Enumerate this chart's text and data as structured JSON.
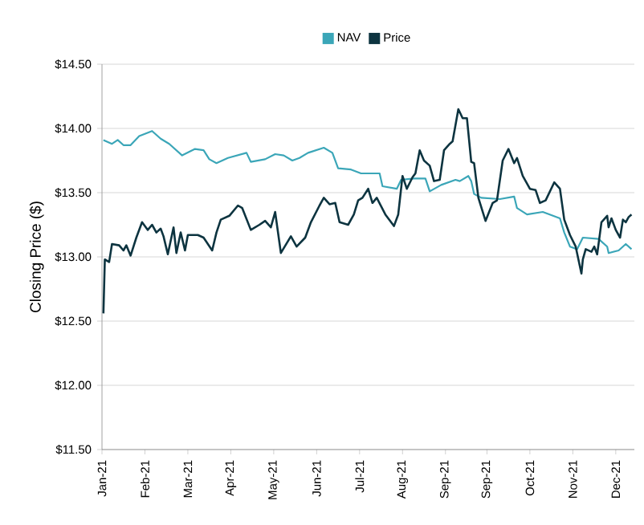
{
  "chart_data": {
    "type": "line",
    "ylabel": "Closing Price ($)",
    "legend": "top",
    "grid": "y",
    "marker": "none",
    "line_style": "solid",
    "xlim": [
      "2021-01-04",
      "2022-01-11"
    ],
    "xticks": [
      {
        "value": "2021-01-04",
        "label": "Jan-21"
      },
      {
        "value": "2021-02-03",
        "label": "Feb-21"
      },
      {
        "value": "2021-03-05",
        "label": "Mar-21"
      },
      {
        "value": "2021-04-04",
        "label": "Apr-21"
      },
      {
        "value": "2021-05-04",
        "label": "May-21"
      },
      {
        "value": "2021-06-03",
        "label": "Jun-21"
      },
      {
        "value": "2021-07-03",
        "label": "Jul-21"
      },
      {
        "value": "2021-08-02",
        "label": "Aug-21"
      },
      {
        "value": "2021-09-01",
        "label": "Sep-21"
      },
      {
        "value": "2021-09-30",
        "label": "Sep-21"
      },
      {
        "value": "2021-10-30",
        "label": "Oct-21"
      },
      {
        "value": "2021-11-29",
        "label": "Nov-21"
      },
      {
        "value": "2021-12-29",
        "label": "Dec-21"
      }
    ],
    "ylim": [
      11.5,
      14.5
    ],
    "yticks": [
      {
        "value": 11.5,
        "label": "$11.50"
      },
      {
        "value": 12,
        "label": "$12.00"
      },
      {
        "value": 12.5,
        "label": "$12.50"
      },
      {
        "value": 13,
        "label": "$13.00"
      },
      {
        "value": 13.5,
        "label": "$13.50"
      },
      {
        "value": 14,
        "label": "$14.00"
      },
      {
        "value": 14.5,
        "label": "$14.50"
      }
    ],
    "series": [
      {
        "name": "NAV",
        "color": "#3ba6b8",
        "x": [
          "2021-01-05",
          "2021-01-11",
          "2021-01-15",
          "2021-01-19",
          "2021-01-24",
          "2021-01-30",
          "2021-02-08",
          "2021-02-14",
          "2021-02-20",
          "2021-03-01",
          "2021-03-10",
          "2021-03-16",
          "2021-03-20",
          "2021-03-25",
          "2021-04-02",
          "2021-04-15",
          "2021-04-18",
          "2021-04-28",
          "2021-05-05",
          "2021-05-11",
          "2021-05-17",
          "2021-05-22",
          "2021-05-28",
          "2021-06-08",
          "2021-06-14",
          "2021-06-18",
          "2021-06-27",
          "2021-07-04",
          "2021-07-17",
          "2021-07-19",
          "2021-07-29",
          "2021-08-01",
          "2021-08-10",
          "2021-08-18",
          "2021-08-21",
          "2021-08-29",
          "2021-09-08",
          "2021-09-11",
          "2021-09-17",
          "2021-09-19",
          "2021-09-21",
          "2021-09-26",
          "2021-10-09",
          "2021-10-19",
          "2021-10-21",
          "2021-10-28",
          "2021-11-08",
          "2021-11-20",
          "2021-11-23",
          "2021-11-27",
          "2021-12-02",
          "2021-12-06",
          "2021-12-17",
          "2021-12-23",
          "2021-12-24",
          "2021-12-31",
          "2022-01-05",
          "2022-01-09"
        ],
        "values": [
          13.91,
          13.88,
          13.91,
          13.87,
          13.87,
          13.94,
          13.98,
          13.92,
          13.88,
          13.79,
          13.84,
          13.83,
          13.76,
          13.73,
          13.77,
          13.81,
          13.74,
          13.76,
          13.8,
          13.79,
          13.75,
          13.77,
          13.81,
          13.85,
          13.81,
          13.69,
          13.68,
          13.65,
          13.65,
          13.55,
          13.53,
          13.6,
          13.61,
          13.61,
          13.51,
          13.56,
          13.6,
          13.59,
          13.63,
          13.59,
          13.49,
          13.46,
          13.45,
          13.47,
          13.38,
          13.33,
          13.35,
          13.3,
          13.19,
          13.08,
          13.06,
          13.15,
          13.14,
          13.08,
          13.03,
          13.05,
          13.1,
          13.06
        ]
      },
      {
        "name": "Price",
        "color": "#0d3440",
        "x": [
          "2021-01-05",
          "2021-01-06",
          "2021-01-09",
          "2021-01-11",
          "2021-01-16",
          "2021-01-19",
          "2021-01-21",
          "2021-01-24",
          "2021-01-28",
          "2021-02-01",
          "2021-02-05",
          "2021-02-08",
          "2021-02-11",
          "2021-02-14",
          "2021-02-16",
          "2021-02-19",
          "2021-02-23",
          "2021-02-25",
          "2021-02-28",
          "2021-03-03",
          "2021-03-05",
          "2021-03-12",
          "2021-03-16",
          "2021-03-22",
          "2021-03-25",
          "2021-03-28",
          "2021-04-03",
          "2021-04-09",
          "2021-04-12",
          "2021-04-18",
          "2021-04-24",
          "2021-04-28",
          "2021-05-02",
          "2021-05-05",
          "2021-05-09",
          "2021-05-16",
          "2021-05-20",
          "2021-05-26",
          "2021-05-30",
          "2021-06-05",
          "2021-06-08",
          "2021-06-12",
          "2021-06-16",
          "2021-06-19",
          "2021-06-25",
          "2021-06-29",
          "2021-07-02",
          "2021-07-05",
          "2021-07-09",
          "2021-07-12",
          "2021-07-15",
          "2021-07-21",
          "2021-07-27",
          "2021-07-30",
          "2021-08-02",
          "2021-08-05",
          "2021-08-09",
          "2021-08-11",
          "2021-08-14",
          "2021-08-17",
          "2021-08-21",
          "2021-08-24",
          "2021-08-28",
          "2021-08-31",
          "2021-09-04",
          "2021-09-06",
          "2021-09-10",
          "2021-09-13",
          "2021-09-16",
          "2021-09-19",
          "2021-09-21",
          "2021-09-24",
          "2021-09-29",
          "2021-10-04",
          "2021-10-07",
          "2021-10-11",
          "2021-10-15",
          "2021-10-19",
          "2021-10-21",
          "2021-10-25",
          "2021-10-30",
          "2021-11-03",
          "2021-11-06",
          "2021-11-10",
          "2021-11-16",
          "2021-11-20",
          "2021-11-23",
          "2021-11-27",
          "2021-12-01",
          "2021-12-05",
          "2021-12-06",
          "2021-12-08",
          "2021-12-12",
          "2021-12-14",
          "2021-12-16",
          "2021-12-19",
          "2021-12-23",
          "2021-12-24",
          "2021-12-26",
          "2021-12-29",
          "2022-01-01",
          "2022-01-03",
          "2022-01-05",
          "2022-01-07",
          "2022-01-09"
        ],
        "values": [
          12.56,
          12.98,
          12.96,
          13.1,
          13.09,
          13.05,
          13.09,
          13.01,
          13.15,
          13.27,
          13.21,
          13.25,
          13.19,
          13.22,
          13.16,
          13.02,
          13.23,
          13.03,
          13.19,
          13.05,
          13.17,
          13.17,
          13.15,
          13.05,
          13.19,
          13.29,
          13.32,
          13.4,
          13.38,
          13.21,
          13.25,
          13.28,
          13.23,
          13.35,
          13.03,
          13.16,
          13.08,
          13.15,
          13.27,
          13.4,
          13.46,
          13.41,
          13.42,
          13.27,
          13.25,
          13.33,
          13.44,
          13.46,
          13.53,
          13.42,
          13.46,
          13.33,
          13.24,
          13.33,
          13.63,
          13.53,
          13.62,
          13.65,
          13.83,
          13.75,
          13.71,
          13.59,
          13.6,
          13.83,
          13.88,
          13.9,
          14.15,
          14.08,
          14.08,
          13.74,
          13.73,
          13.46,
          13.28,
          13.42,
          13.44,
          13.75,
          13.84,
          13.73,
          13.77,
          13.63,
          13.53,
          13.52,
          13.42,
          13.44,
          13.58,
          13.53,
          13.29,
          13.17,
          13.08,
          12.87,
          12.98,
          13.06,
          13.04,
          13.08,
          13.02,
          13.27,
          13.32,
          13.23,
          13.3,
          13.21,
          13.15,
          13.29,
          13.27,
          13.31,
          13.33
        ]
      }
    ]
  }
}
